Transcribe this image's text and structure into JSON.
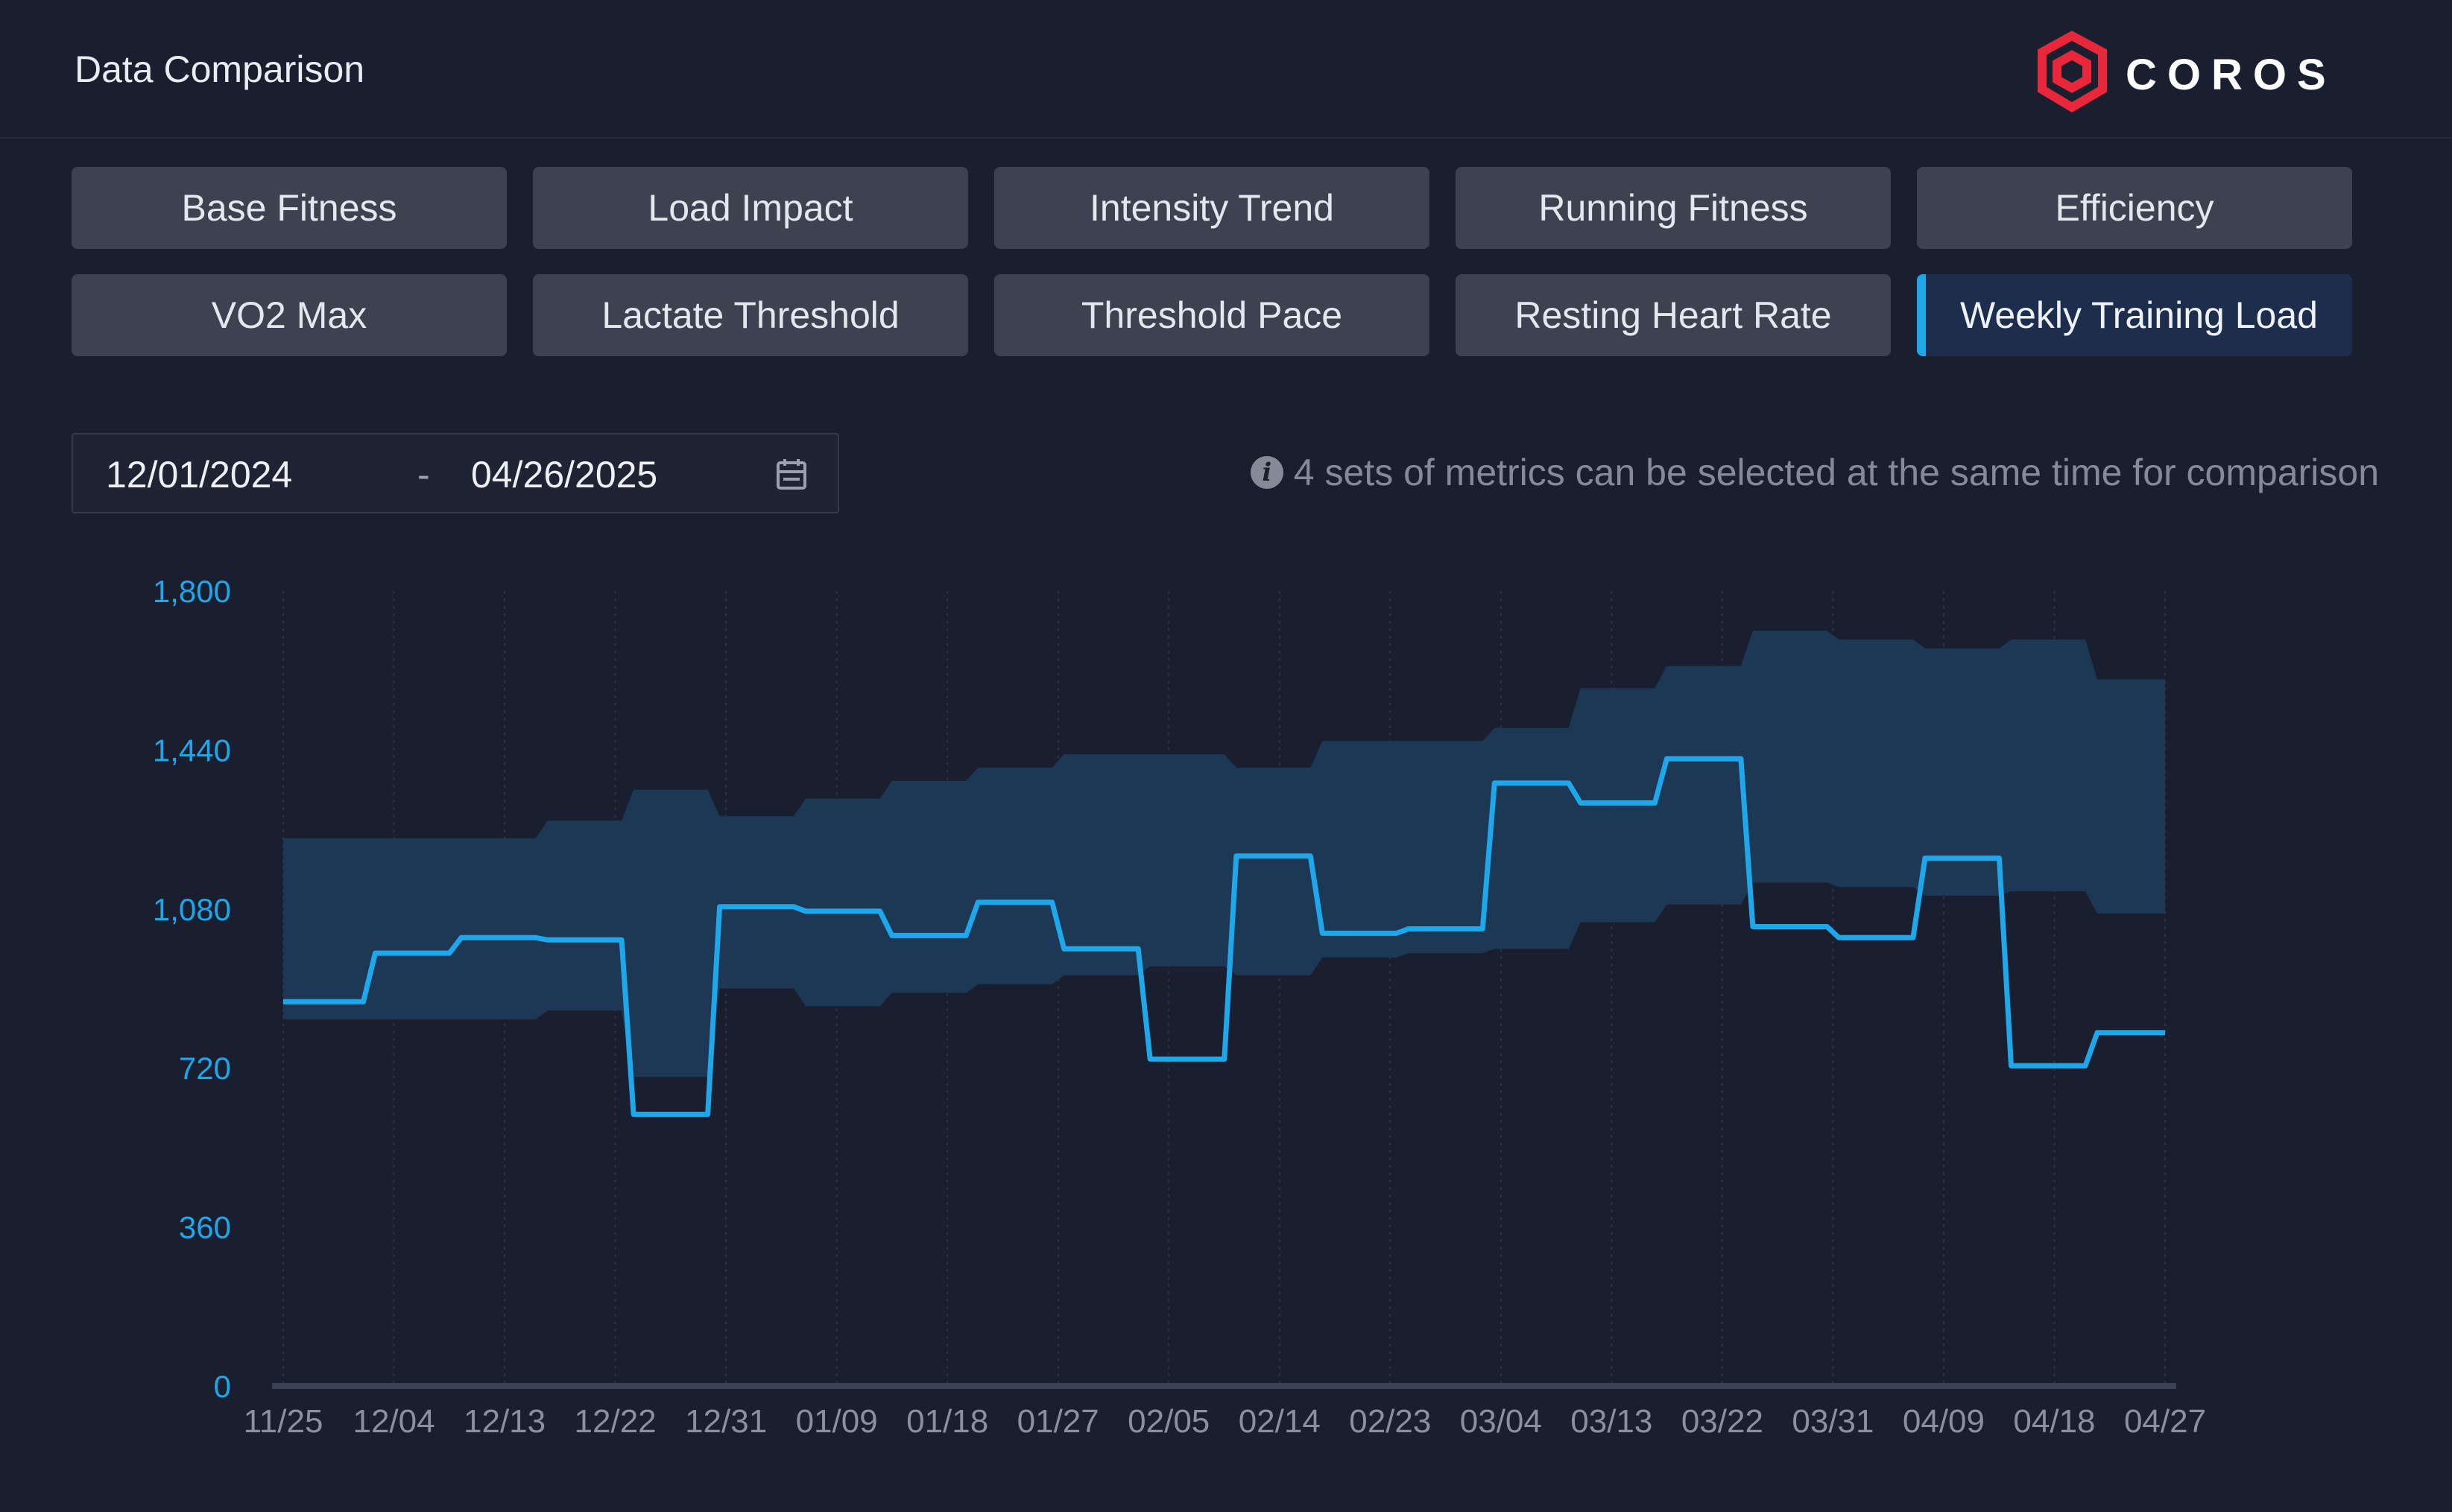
{
  "header": {
    "title": "Data Comparison",
    "brand": "COROS",
    "brand_color": "#e8283a"
  },
  "tabs": [
    {
      "label": "Base Fitness",
      "active": false
    },
    {
      "label": "Load Impact",
      "active": false
    },
    {
      "label": "Intensity Trend",
      "active": false
    },
    {
      "label": "Running Fitness",
      "active": false
    },
    {
      "label": "Efficiency",
      "active": false
    },
    {
      "label": "VO2 Max",
      "active": false
    },
    {
      "label": "Lactate Threshold",
      "active": false
    },
    {
      "label": "Threshold Pace",
      "active": false
    },
    {
      "label": "Resting Heart Rate",
      "active": false
    },
    {
      "label": "Weekly Training Load",
      "active": true
    }
  ],
  "date_range": {
    "start": "12/01/2024",
    "separator": "-",
    "end": "04/26/2025",
    "icon": "calendar-icon"
  },
  "info": {
    "icon": "info-icon",
    "text": "4 sets of metrics can be selected at the same time for comparison"
  },
  "colors": {
    "accent": "#1ea7ea",
    "band": "#1d3a57",
    "axis_text": "#1ea7ea",
    "x_text": "#8a909c"
  },
  "chart_data": {
    "type": "line",
    "x_tick_labels": [
      "11/25",
      "12/04",
      "12/13",
      "12/22",
      "12/31",
      "01/09",
      "01/18",
      "01/27",
      "02/05",
      "02/14",
      "02/23",
      "03/04",
      "03/13",
      "03/22",
      "03/31",
      "04/09",
      "04/18",
      "04/27"
    ],
    "y_ticks": [
      0,
      360,
      720,
      1080,
      1440,
      1800
    ],
    "y_tick_labels": [
      "0",
      "360",
      "720",
      "1,080",
      "1,440",
      "1,800"
    ],
    "ylim": [
      0,
      1800
    ],
    "grid": "vertical dotted",
    "band_series": {
      "x": [
        "2024-11-25",
        "2024-12-02",
        "2024-12-09",
        "2024-12-16",
        "2024-12-23",
        "2024-12-30",
        "2025-01-06",
        "2025-01-13",
        "2025-01-20",
        "2025-01-27",
        "2025-02-03",
        "2025-02-10",
        "2025-02-17",
        "2025-02-24",
        "2025-03-03",
        "2025-03-10",
        "2025-03-17",
        "2025-03-24",
        "2025-03-31",
        "2025-04-07",
        "2025-04-14",
        "2025-04-21"
      ],
      "upper": [
        1240,
        1240,
        1240,
        1280,
        1350,
        1290,
        1330,
        1370,
        1400,
        1430,
        1430,
        1400,
        1460,
        1460,
        1490,
        1580,
        1630,
        1710,
        1690,
        1670,
        1690,
        1600
      ],
      "lower": [
        830,
        830,
        830,
        850,
        700,
        900,
        860,
        890,
        910,
        930,
        950,
        930,
        970,
        980,
        990,
        1050,
        1090,
        1140,
        1130,
        1110,
        1120,
        1070
      ]
    },
    "series": [
      {
        "x": [
          "2024-11-25",
          "2024-12-02",
          "2024-12-09",
          "2024-12-16",
          "2024-12-23",
          "2024-12-30",
          "2025-01-06",
          "2025-01-13",
          "2025-01-20",
          "2025-01-27",
          "2025-02-03",
          "2025-02-10",
          "2025-02-17",
          "2025-02-24",
          "2025-03-03",
          "2025-03-10",
          "2025-03-17",
          "2025-03-24",
          "2025-03-31",
          "2025-04-07",
          "2025-04-14",
          "2025-04-21"
        ],
        "values": [
          870,
          980,
          1015,
          1010,
          615,
          1085,
          1075,
          1020,
          1095,
          990,
          740,
          1200,
          1025,
          1035,
          1365,
          1320,
          1420,
          1040,
          1015,
          1195,
          725,
          800
        ]
      }
    ]
  }
}
